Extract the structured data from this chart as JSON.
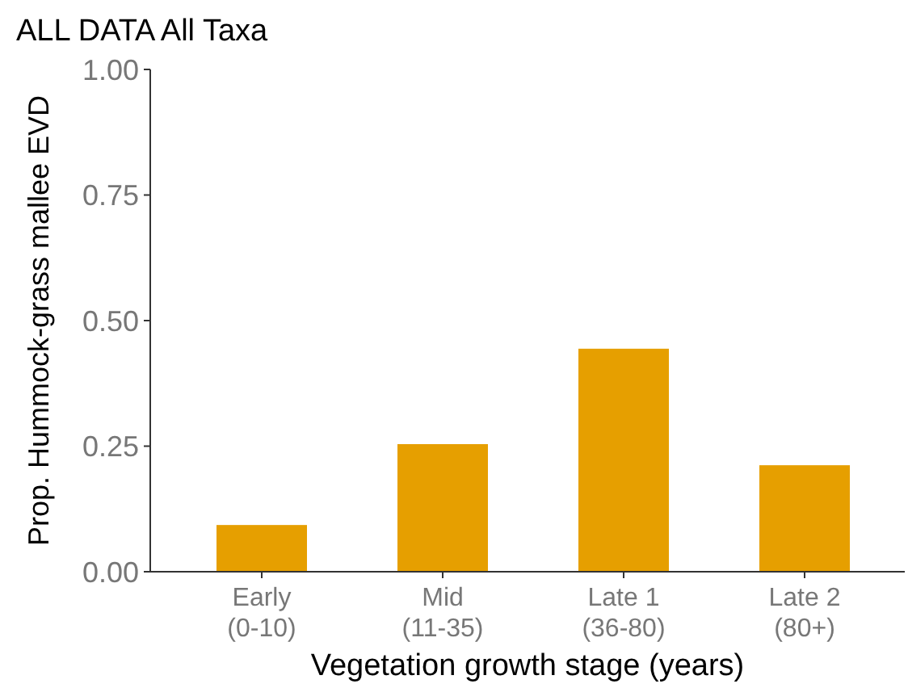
{
  "chart_data": {
    "type": "bar",
    "title": "ALL DATA  All Taxa",
    "xlabel": "Vegetation growth stage (years)",
    "ylabel": "Prop. Hummock-grass mallee EVD",
    "categories": [
      "Early\n(0-10)",
      "Mid\n(11-35)",
      "Late 1\n(36-80)",
      "Late 2\n(80+)"
    ],
    "values": [
      0.093,
      0.254,
      0.444,
      0.212
    ],
    "color": "#e69f00",
    "ylim": [
      0,
      1
    ],
    "yticks": [
      {
        "value": 0,
        "label": "0.00"
      },
      {
        "value": 0.25,
        "label": "0.25"
      },
      {
        "value": 0.5,
        "label": "0.50"
      },
      {
        "value": 0.75,
        "label": "0.75"
      },
      {
        "value": 1,
        "label": "1.00"
      }
    ],
    "grid": false
  }
}
